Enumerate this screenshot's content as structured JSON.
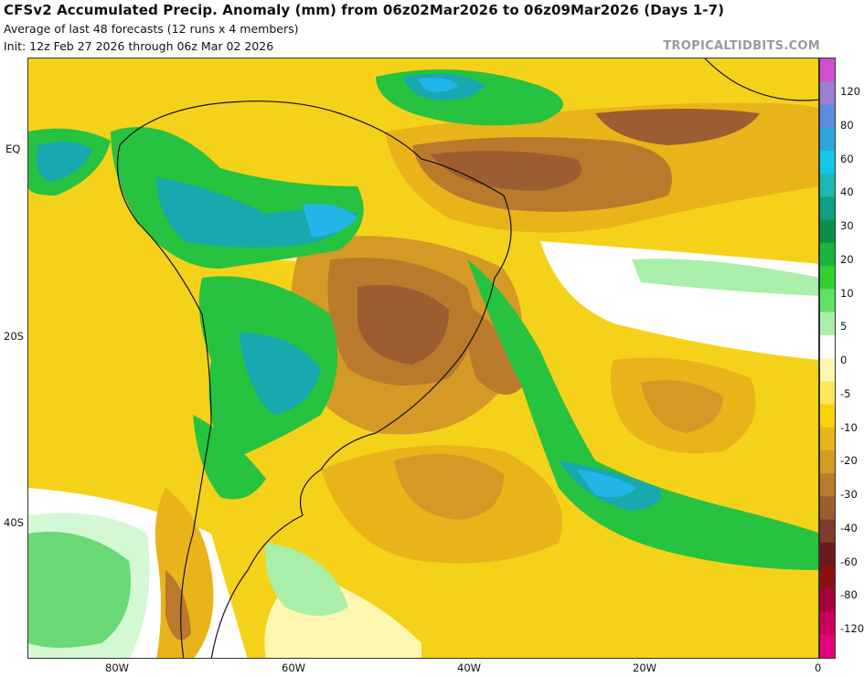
{
  "header": {
    "title": "CFSv2 Accumulated Precip. Anomaly (mm) from 06z02Mar2026 to 06z09Mar2026 (Days 1-7)",
    "subtitle1": "Average of last 48 forecasts (12 runs x 4 members)",
    "subtitle2": "Init: 12z Feb 27 2026 through 06z Mar 02 2026",
    "credit": "TROPICALTIDBITS.COM"
  },
  "map": {
    "region": "South America and South Atlantic",
    "lat_labels": [
      "EQ",
      "20S",
      "40S"
    ],
    "lon_labels": [
      "80W",
      "60W",
      "40W",
      "20W",
      "0"
    ]
  },
  "colorbar": {
    "ticks": [
      "120",
      "80",
      "60",
      "40",
      "30",
      "20",
      "10",
      "5",
      "0",
      "-5",
      "-10",
      "-20",
      "-30",
      "-40",
      "-60",
      "-80",
      "-120"
    ],
    "colors": [
      "#d04fd0",
      "#9a7fd0",
      "#5b8bdd",
      "#2ba6dd",
      "#12c8e8",
      "#1fb6b6",
      "#0f9e86",
      "#0b8f4a",
      "#18b43b",
      "#2fd12f",
      "#62e062",
      "#a9efa9",
      "#ffffff",
      "#fff7b0",
      "#ffe85a",
      "#f8d10a",
      "#e9b41a",
      "#d59926",
      "#b97a2c",
      "#9c5e30",
      "#7f3b2b",
      "#6b1a1a",
      "#8b1010",
      "#a6003a",
      "#c9005e",
      "#e6007e"
    ]
  },
  "colors": {
    "brown_dry": "#9c6a3a",
    "orange_dry": "#d9a32a",
    "yellow_dry": "#f5d21a",
    "green_wet": "#27c23f",
    "teal_wet": "#18a8b0",
    "cyan_wet": "#22b6e8",
    "light_green": "#a9efa9"
  }
}
